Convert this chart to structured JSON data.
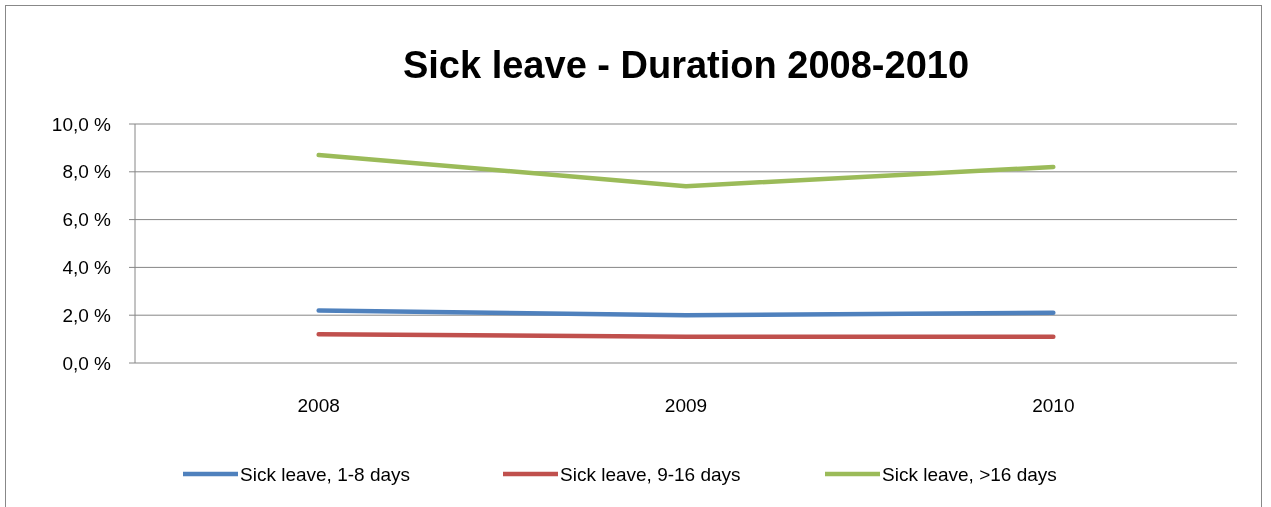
{
  "chart_data": {
    "type": "line",
    "title": "Sick leave - Duration 2008-2010",
    "categories": [
      "2008",
      "2009",
      "2010"
    ],
    "series": [
      {
        "name": "Sick leave, 1-8 days",
        "color": "#4f81bd",
        "values": [
          2.2,
          2.0,
          2.1
        ]
      },
      {
        "name": "Sick leave, 9-16 days",
        "color": "#c0504d",
        "values": [
          1.2,
          1.1,
          1.1
        ]
      },
      {
        "name": "Sick leave, >16 days",
        "color": "#9bbb59",
        "values": [
          8.7,
          7.4,
          8.2
        ]
      }
    ],
    "ylim": [
      0,
      10
    ],
    "yticks": [
      {
        "value": 0,
        "label": "0,0 %"
      },
      {
        "value": 2,
        "label": "2,0 %"
      },
      {
        "value": 4,
        "label": "4,0 %"
      },
      {
        "value": 6,
        "label": "6,0 %"
      },
      {
        "value": 8,
        "label": "8,0 %"
      },
      {
        "value": 10,
        "label": "10,0 %"
      }
    ],
    "grid": "y",
    "legend": "bottom",
    "marker": "none",
    "line_style": "solid"
  }
}
